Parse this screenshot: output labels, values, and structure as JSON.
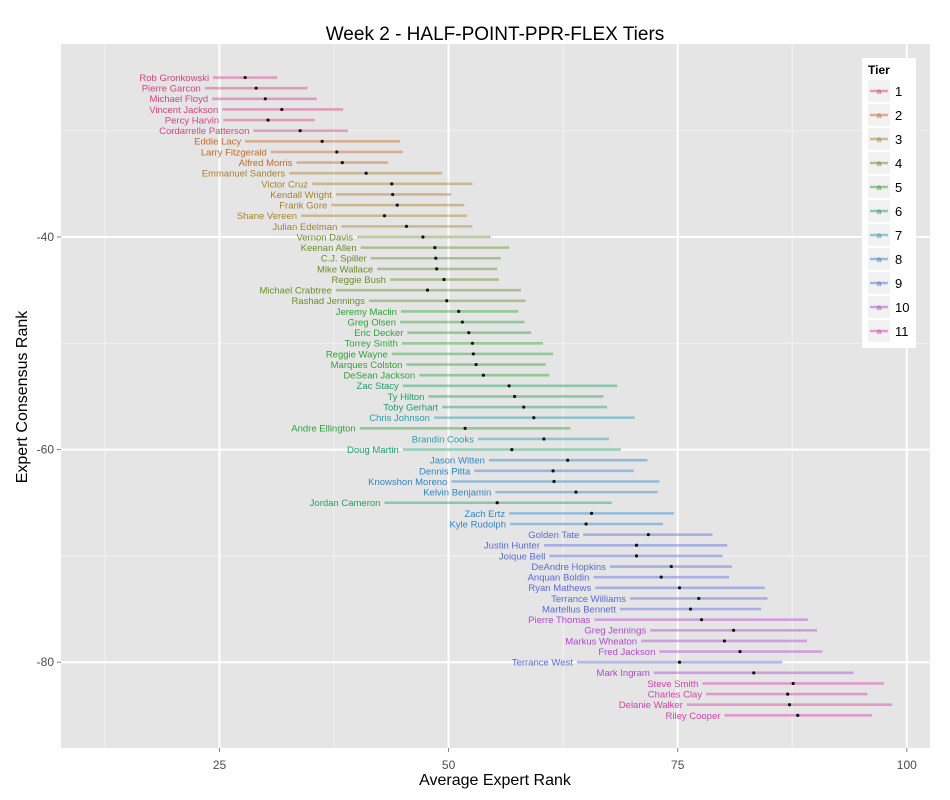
{
  "chart_data": {
    "type": "scatter",
    "subtype": "interval-dot (error bars with mean point)",
    "title": "Week 2 - HALF-POINT-PPR-FLEX Tiers",
    "xlabel": "Average Expert Rank",
    "ylabel": "Expert Consensus Rank",
    "xlim": [
      7.5,
      102.5
    ],
    "ylim": [
      -89,
      -20.5
    ],
    "x_ticks": [
      25,
      50,
      75,
      100
    ],
    "y_ticks": [
      -40,
      -60,
      -80
    ],
    "grid": true,
    "legend": {
      "title": "Tier",
      "position": "right-inside-top",
      "entries": [
        "1",
        "2",
        "3",
        "4",
        "5",
        "6",
        "7",
        "8",
        "9",
        "10",
        "11"
      ]
    },
    "tier_colors": {
      "1": "#d6457a",
      "2": "#c8692a",
      "3": "#a3832c",
      "4": "#6b8e2a",
      "5": "#2ea338",
      "6": "#1e9e6a",
      "7": "#27a0aa",
      "8": "#2f86cc",
      "9": "#5a6ae0",
      "10": "#b347d6",
      "11": "#d83fa8"
    },
    "series": [
      {
        "name": "Rob Gronkowski",
        "tier": 1,
        "rank": 25,
        "min": 24.3,
        "mean": 27.8,
        "max": 31.3
      },
      {
        "name": "Pierre Garcon",
        "tier": 1,
        "rank": 26,
        "min": 23.4,
        "mean": 29.0,
        "max": 34.6
      },
      {
        "name": "Michael Floyd",
        "tier": 1,
        "rank": 27,
        "min": 24.2,
        "mean": 30.0,
        "max": 35.6
      },
      {
        "name": "Vincent Jackson",
        "tier": 1,
        "rank": 28,
        "min": 25.3,
        "mean": 31.8,
        "max": 38.5
      },
      {
        "name": "Percy Harvin",
        "tier": 1,
        "rank": 29,
        "min": 25.4,
        "mean": 30.3,
        "max": 35.4
      },
      {
        "name": "Cordarrelle Patterson",
        "tier": 1,
        "rank": 30,
        "min": 28.7,
        "mean": 33.8,
        "max": 39.0
      },
      {
        "name": "Eddie Lacy",
        "tier": 2,
        "rank": 31,
        "min": 27.8,
        "mean": 36.2,
        "max": 44.7
      },
      {
        "name": "Larry Fitzgerald",
        "tier": 2,
        "rank": 32,
        "min": 30.6,
        "mean": 37.8,
        "max": 45.0
      },
      {
        "name": "Alfred Morris",
        "tier": 2,
        "rank": 33,
        "min": 33.4,
        "mean": 38.4,
        "max": 43.4
      },
      {
        "name": "Emmanuel Sanders",
        "tier": 3,
        "rank": 34,
        "min": 32.6,
        "mean": 41.0,
        "max": 49.3
      },
      {
        "name": "Victor Cruz",
        "tier": 3,
        "rank": 35,
        "min": 35.1,
        "mean": 43.8,
        "max": 52.6
      },
      {
        "name": "Kendall Wright",
        "tier": 3,
        "rank": 36,
        "min": 37.7,
        "mean": 43.9,
        "max": 50.3
      },
      {
        "name": "Frank Gore",
        "tier": 3,
        "rank": 37,
        "min": 37.2,
        "mean": 44.4,
        "max": 51.7
      },
      {
        "name": "Shane Vereen",
        "tier": 3,
        "rank": 38,
        "min": 33.9,
        "mean": 43.0,
        "max": 52.0
      },
      {
        "name": "Julian Edelman",
        "tier": 3,
        "rank": 39,
        "min": 38.3,
        "mean": 45.4,
        "max": 52.6
      },
      {
        "name": "Vernon Davis",
        "tier": 4,
        "rank": 40,
        "min": 40.0,
        "mean": 47.2,
        "max": 54.6
      },
      {
        "name": "Keenan Allen",
        "tier": 4,
        "rank": 41,
        "min": 40.4,
        "mean": 48.5,
        "max": 56.6
      },
      {
        "name": "C.J. Spiller",
        "tier": 4,
        "rank": 42,
        "min": 41.5,
        "mean": 48.6,
        "max": 55.7
      },
      {
        "name": "Mike Wallace",
        "tier": 4,
        "rank": 43,
        "min": 42.2,
        "mean": 48.7,
        "max": 55.3
      },
      {
        "name": "Reggie Bush",
        "tier": 4,
        "rank": 44,
        "min": 43.6,
        "mean": 49.5,
        "max": 55.5
      },
      {
        "name": "Michael Crabtree",
        "tier": 4,
        "rank": 45,
        "min": 37.7,
        "mean": 47.7,
        "max": 57.9
      },
      {
        "name": "Rashad Jennings",
        "tier": 4,
        "rank": 46,
        "min": 41.3,
        "mean": 49.8,
        "max": 58.4
      },
      {
        "name": "Jeremy Maclin",
        "tier": 5,
        "rank": 47,
        "min": 44.8,
        "mean": 51.1,
        "max": 57.6
      },
      {
        "name": "Greg Olsen",
        "tier": 5,
        "rank": 48,
        "min": 44.7,
        "mean": 51.5,
        "max": 58.3
      },
      {
        "name": "Eric Decker",
        "tier": 5,
        "rank": 49,
        "min": 45.5,
        "mean": 52.2,
        "max": 59.0
      },
      {
        "name": "Torrey Smith",
        "tier": 5,
        "rank": 50,
        "min": 44.9,
        "mean": 52.6,
        "max": 60.3
      },
      {
        "name": "Reggie Wayne",
        "tier": 5,
        "rank": 51,
        "min": 43.8,
        "mean": 52.7,
        "max": 61.4
      },
      {
        "name": "Marques Colston",
        "tier": 5,
        "rank": 52,
        "min": 45.4,
        "mean": 53.0,
        "max": 60.6
      },
      {
        "name": "DeSean Jackson",
        "tier": 5,
        "rank": 53,
        "min": 46.8,
        "mean": 53.8,
        "max": 61.0
      },
      {
        "name": "Zac Stacy",
        "tier": 6,
        "rank": 54,
        "min": 45.0,
        "mean": 56.6,
        "max": 68.4
      },
      {
        "name": "Ty Hilton",
        "tier": 6,
        "rank": 55,
        "min": 47.8,
        "mean": 57.2,
        "max": 66.9
      },
      {
        "name": "Toby Gerhart",
        "tier": 6,
        "rank": 56,
        "min": 49.3,
        "mean": 58.2,
        "max": 67.3
      },
      {
        "name": "Chris Johnson",
        "tier": 7,
        "rank": 57,
        "min": 48.4,
        "mean": 59.3,
        "max": 70.3
      },
      {
        "name": "Andre Ellington",
        "tier": 5,
        "rank": 58,
        "min": 40.3,
        "mean": 51.8,
        "max": 63.3
      },
      {
        "name": "Brandin Cooks",
        "tier": 7,
        "rank": 59,
        "min": 53.2,
        "mean": 60.4,
        "max": 67.5
      },
      {
        "name": "Doug Martin",
        "tier": 6,
        "rank": 60,
        "min": 45.0,
        "mean": 56.9,
        "max": 68.8
      },
      {
        "name": "Jason Witten",
        "tier": 8,
        "rank": 61,
        "min": 54.4,
        "mean": 63.0,
        "max": 71.7
      },
      {
        "name": "Dennis Pitta",
        "tier": 8,
        "rank": 62,
        "min": 52.8,
        "mean": 61.4,
        "max": 70.2
      },
      {
        "name": "Knowshon Moreno",
        "tier": 8,
        "rank": 63,
        "min": 50.3,
        "mean": 61.5,
        "max": 73.0
      },
      {
        "name": "Kelvin Benjamin",
        "tier": 8,
        "rank": 64,
        "min": 55.1,
        "mean": 63.9,
        "max": 72.8
      },
      {
        "name": "Jordan Cameron",
        "tier": 6,
        "rank": 65,
        "min": 43.0,
        "mean": 55.3,
        "max": 67.8
      },
      {
        "name": "Zach Ertz",
        "tier": 8,
        "rank": 66,
        "min": 56.6,
        "mean": 65.6,
        "max": 74.6
      },
      {
        "name": "Kyle Rudolph",
        "tier": 8,
        "rank": 67,
        "min": 56.7,
        "mean": 65.0,
        "max": 73.4
      },
      {
        "name": "Golden Tate",
        "tier": 9,
        "rank": 68,
        "min": 64.7,
        "mean": 71.8,
        "max": 78.8
      },
      {
        "name": "Justin Hunter",
        "tier": 9,
        "rank": 69,
        "min": 60.4,
        "mean": 70.5,
        "max": 80.4
      },
      {
        "name": "Joique Bell",
        "tier": 9,
        "rank": 70,
        "min": 61.0,
        "mean": 70.5,
        "max": 79.9
      },
      {
        "name": "DeAndre Hopkins",
        "tier": 9,
        "rank": 71,
        "min": 67.6,
        "mean": 74.3,
        "max": 80.9
      },
      {
        "name": "Anquan Boldin",
        "tier": 9,
        "rank": 72,
        "min": 65.8,
        "mean": 73.2,
        "max": 80.6
      },
      {
        "name": "Ryan Mathews",
        "tier": 9,
        "rank": 73,
        "min": 66.0,
        "mean": 75.2,
        "max": 84.5
      },
      {
        "name": "Terrance Williams",
        "tier": 9,
        "rank": 74,
        "min": 69.8,
        "mean": 77.3,
        "max": 84.8
      },
      {
        "name": "Martellus Bennett",
        "tier": 9,
        "rank": 75,
        "min": 68.7,
        "mean": 76.4,
        "max": 84.1
      },
      {
        "name": "Pierre Thomas",
        "tier": 10,
        "rank": 76,
        "min": 65.9,
        "mean": 77.6,
        "max": 89.2
      },
      {
        "name": "Greg Jennings",
        "tier": 10,
        "rank": 77,
        "min": 72.0,
        "mean": 81.1,
        "max": 90.2
      },
      {
        "name": "Markus Wheaton",
        "tier": 10,
        "rank": 78,
        "min": 71.0,
        "mean": 80.1,
        "max": 89.1
      },
      {
        "name": "Fred Jackson",
        "tier": 10,
        "rank": 79,
        "min": 73.0,
        "mean": 81.8,
        "max": 90.8
      },
      {
        "name": "Terrance West",
        "tier": 9,
        "rank": 80,
        "min": 64.0,
        "mean": 75.2,
        "max": 86.4
      },
      {
        "name": "Mark Ingram",
        "tier": 10,
        "rank": 81,
        "min": 72.4,
        "mean": 83.3,
        "max": 94.2
      },
      {
        "name": "Steve Smith",
        "tier": 11,
        "rank": 82,
        "min": 77.7,
        "mean": 87.6,
        "max": 97.5
      },
      {
        "name": "Charles Clay",
        "tier": 11,
        "rank": 83,
        "min": 78.1,
        "mean": 87.0,
        "max": 95.7
      },
      {
        "name": "Delanie Walker",
        "tier": 11,
        "rank": 84,
        "min": 76.0,
        "mean": 87.2,
        "max": 98.4
      },
      {
        "name": "Riley Cooper",
        "tier": 11,
        "rank": 85,
        "min": 80.1,
        "mean": 88.1,
        "max": 96.2
      }
    ]
  }
}
